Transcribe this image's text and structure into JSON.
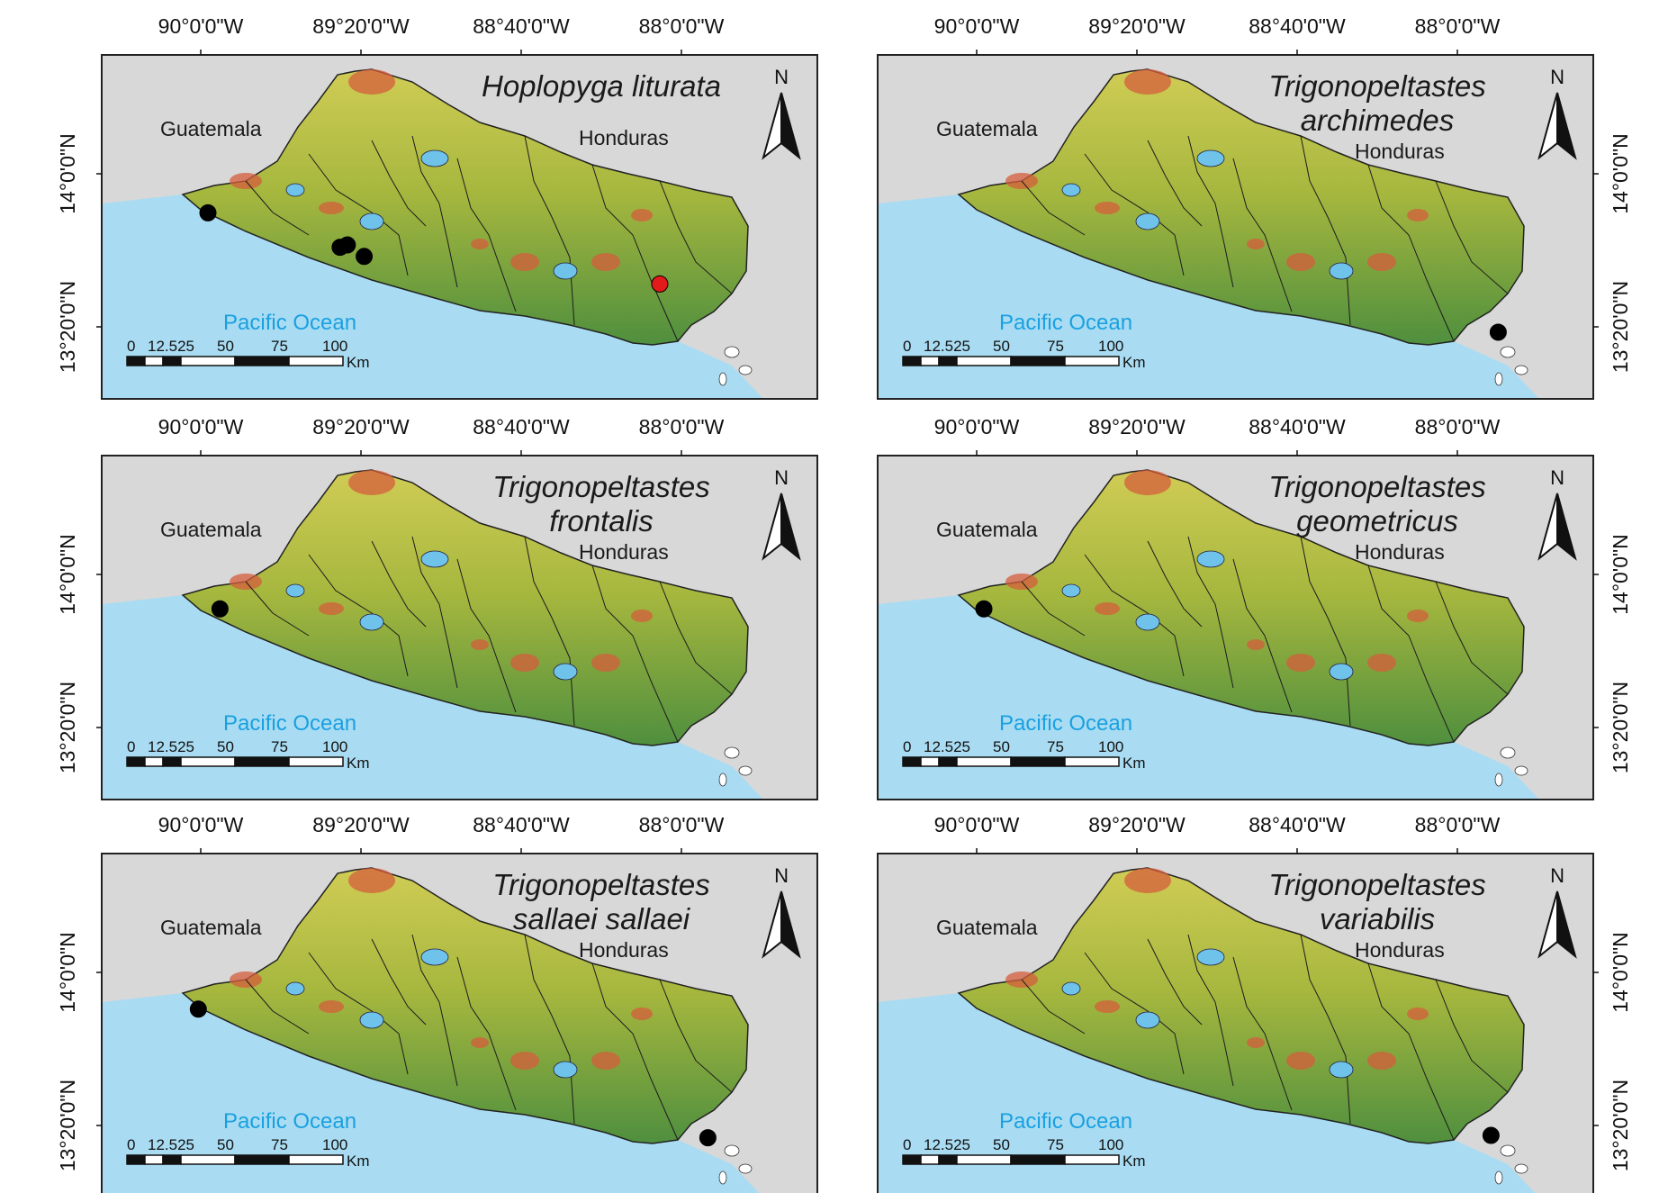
{
  "panels": [
    {
      "id": "hoplopyga-liturata",
      "title_lines": [
        "Hoplopyga liturata"
      ],
      "records": [
        {
          "lon": -89.97,
          "lat": 13.83,
          "type": "black"
        },
        {
          "lon": -89.42,
          "lat": 13.68,
          "type": "black"
        },
        {
          "lon": -89.39,
          "lat": 13.69,
          "type": "black"
        },
        {
          "lon": -89.32,
          "lat": 13.64,
          "type": "black"
        },
        {
          "lon": -88.09,
          "lat": 13.52,
          "type": "red"
        }
      ]
    },
    {
      "id": "trigonopeltastes-archimedes",
      "title_lines": [
        "Trigonopeltastes",
        "archimedes"
      ],
      "records": [
        {
          "lon": -87.83,
          "lat": 13.31,
          "type": "black"
        }
      ]
    },
    {
      "id": "trigonopeltastes-frontalis",
      "title_lines": [
        "Trigonopeltastes",
        "frontalis"
      ],
      "records": [
        {
          "lon": -89.92,
          "lat": 13.85,
          "type": "black"
        }
      ]
    },
    {
      "id": "trigonopeltastes-geometricus",
      "title_lines": [
        "Trigonopeltastes",
        "geometricus"
      ],
      "records": [
        {
          "lon": -89.97,
          "lat": 13.85,
          "type": "black"
        }
      ]
    },
    {
      "id": "trigonopeltastes-sallaei-sallaei",
      "title_lines": [
        "Trigonopeltastes",
        "sallaei sallaei"
      ],
      "records": [
        {
          "lon": -90.01,
          "lat": 13.84,
          "type": "black"
        },
        {
          "lon": -87.89,
          "lat": 13.28,
          "type": "black"
        }
      ]
    },
    {
      "id": "trigonopeltastes-variabilis",
      "title_lines": [
        "Trigonopeltastes",
        "variabilis"
      ],
      "records": [
        {
          "lon": -87.86,
          "lat": 13.29,
          "type": "black"
        }
      ]
    }
  ],
  "map": {
    "country_left": "Guatemala",
    "country_right": "Honduras",
    "ocean": "Pacific Ocean",
    "north_label": "N",
    "lon_ticks": [
      {
        "lon": -90.0,
        "label": "90°0'0\"W"
      },
      {
        "lon": -89.3333,
        "label": "89°20'0\"W"
      },
      {
        "lon": -88.6667,
        "label": "88°40'0\"W"
      },
      {
        "lon": -88.0,
        "label": "88°0'0\"W"
      }
    ],
    "lat_ticks": [
      {
        "lat": 14.0,
        "label": "14°0'0\"N"
      },
      {
        "lat": 13.3333,
        "label": "13°20'0\"N"
      }
    ],
    "scale_bar": {
      "labels": [
        "0",
        "12.525",
        "50",
        "75",
        "100"
      ],
      "unit": "Km"
    },
    "colors": {
      "ocean": "#a9dcf2",
      "land_outside": "#d8d8d8",
      "lowland": "#4f8f3e",
      "midland": "#a6b73e",
      "highland": "#d0cc55",
      "peak": "#d45d3c",
      "lake": "#6fc3ea",
      "record_black": "#000000",
      "record_red": "#e31a1c"
    }
  }
}
